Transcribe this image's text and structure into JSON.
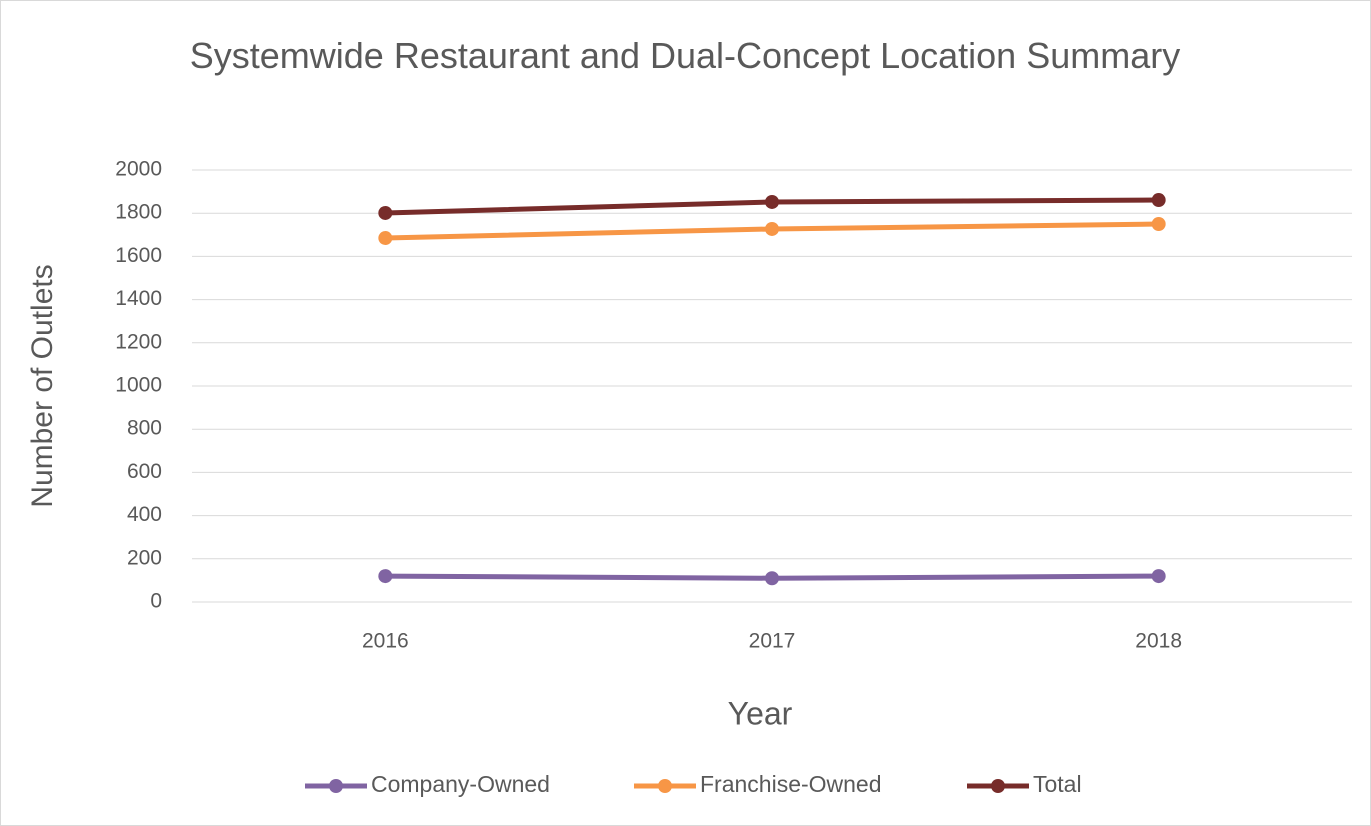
{
  "chart_data": {
    "type": "line",
    "title": "Systemwide Restaurant and Dual-Concept Location Summary",
    "x_label": "Year",
    "y_label": "Number of Outlets",
    "categories": [
      "2016",
      "2017",
      "2018"
    ],
    "series": [
      {
        "name": "Company-Owned",
        "color": "#8064a2",
        "values": [
          120,
          110,
          120
        ]
      },
      {
        "name": "Franchise-Owned",
        "color": "#f79646",
        "values": [
          1685,
          1727,
          1750
        ]
      },
      {
        "name": "Total",
        "color": "#772c2a",
        "values": [
          1801,
          1852,
          1861
        ]
      }
    ],
    "ylim": [
      0,
      2000
    ],
    "yticks": [
      0,
      200,
      400,
      600,
      800,
      1000,
      1200,
      1400,
      1600,
      1800,
      2000
    ],
    "grid": true,
    "legend": "bottom"
  }
}
